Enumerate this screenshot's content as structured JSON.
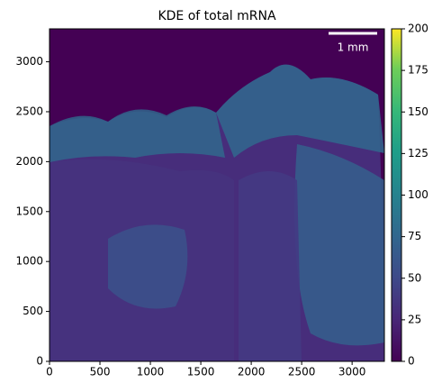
{
  "chart_data": {
    "type": "image",
    "title": "KDE of total mRNA",
    "xlim": [
      0,
      3320
    ],
    "ylim": [
      0,
      3330
    ],
    "xticks": [
      0,
      500,
      1000,
      1500,
      2000,
      2500,
      3000
    ],
    "yticks": [
      0,
      500,
      1000,
      1500,
      2000,
      2500,
      3000
    ],
    "colormap": "viridis",
    "clim": [
      0,
      200
    ],
    "cticks": [
      0,
      25,
      50,
      75,
      100,
      125,
      150,
      175,
      200
    ],
    "scale_bar_label": "1 mm"
  }
}
